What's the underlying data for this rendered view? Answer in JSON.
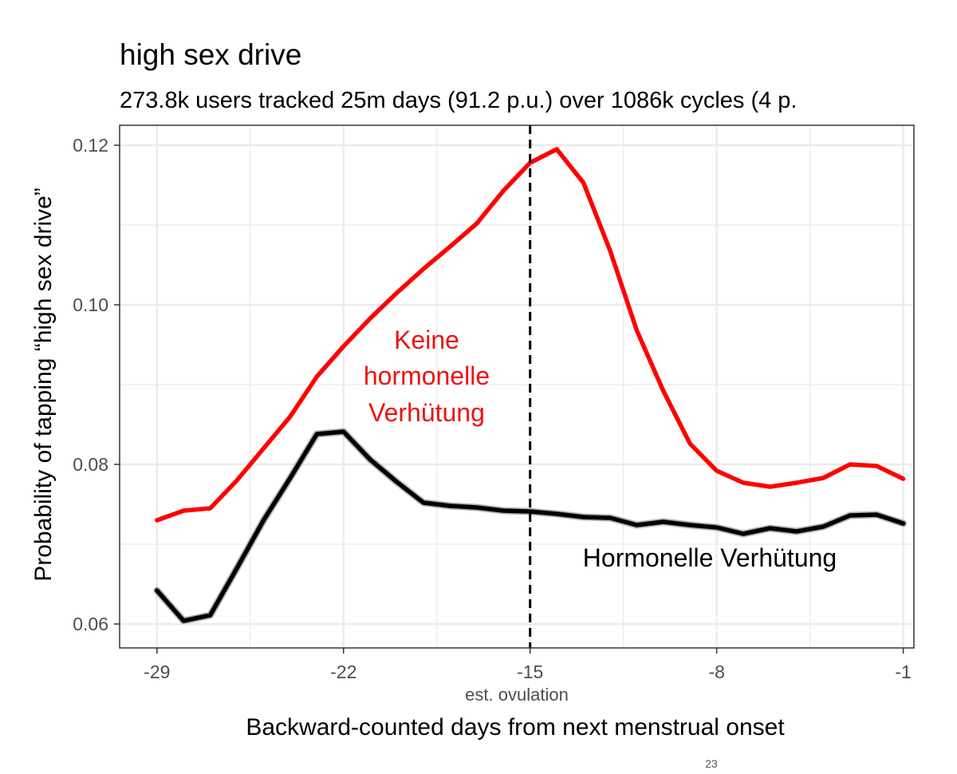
{
  "chart_data": {
    "type": "line",
    "title": "high sex drive",
    "subtitle": "273.8k users tracked 25m days (91.2 p.u.) over 1086k cycles (4 p.",
    "xlabel": "Backward-counted days from next menstrual onset",
    "ylabel": "Probability of tapping “high sex drive”",
    "xlim": [
      -30.4,
      -0.6
    ],
    "ylim": [
      0.057,
      0.1225
    ],
    "x_ticks": [
      -29,
      -22,
      -15,
      -8,
      -1
    ],
    "x_tick_labels": [
      "-29",
      "-22",
      "-15",
      "-8",
      "-1"
    ],
    "y_ticks": [
      0.06,
      0.08,
      0.1,
      0.12
    ],
    "y_tick_labels": [
      "0.06",
      "0.08",
      "0.10",
      "0.12"
    ],
    "grid": true,
    "vline": {
      "x": -15,
      "style": "dashed",
      "label": "est. ovulation"
    },
    "series": [
      {
        "name": "Keine hormonelle Verhütung",
        "color": "#ff0000",
        "x": [
          -29,
          -28,
          -27,
          -26,
          -25,
          -24,
          -23,
          -22,
          -21,
          -20,
          -19,
          -18,
          -17,
          -16,
          -15,
          -14,
          -13,
          -12,
          -11,
          -10,
          -9,
          -8,
          -7,
          -6,
          -5,
          -4,
          -3,
          -2,
          -1
        ],
        "values": [
          0.073,
          0.0742,
          0.0745,
          0.078,
          0.082,
          0.086,
          0.091,
          0.0948,
          0.0983,
          0.1015,
          0.1045,
          0.1073,
          0.1102,
          0.1143,
          0.1178,
          0.1195,
          0.1153,
          0.1068,
          0.0968,
          0.0892,
          0.0826,
          0.0792,
          0.0777,
          0.0772,
          0.0777,
          0.0783,
          0.08,
          0.0798,
          0.0782
        ]
      },
      {
        "name": "Hormonelle Verhütung",
        "color": "#000000",
        "x": [
          -29,
          -28,
          -27,
          -26,
          -25,
          -24,
          -23,
          -22,
          -21,
          -20,
          -19,
          -18,
          -17,
          -16,
          -15,
          -14,
          -13,
          -12,
          -11,
          -10,
          -9,
          -8,
          -7,
          -6,
          -5,
          -4,
          -3,
          -2,
          -1
        ],
        "values": [
          0.0642,
          0.0604,
          0.0611,
          0.067,
          0.073,
          0.0783,
          0.0838,
          0.0841,
          0.0806,
          0.0778,
          0.0752,
          0.0748,
          0.0746,
          0.0742,
          0.0741,
          0.0738,
          0.0734,
          0.0733,
          0.0724,
          0.0728,
          0.0724,
          0.0721,
          0.0713,
          0.072,
          0.0716,
          0.0722,
          0.0736,
          0.0737,
          0.0726
        ]
      }
    ],
    "annotations": {
      "red_lines": [
        "Keine",
        "hormonelle",
        "Verhütung"
      ],
      "black": "Hormonelle Verhütung"
    }
  },
  "page_number": "23",
  "colors": {
    "red": "#ff0000",
    "black": "#000000",
    "grid": "#ebebeb",
    "panel_border": "#333333"
  }
}
